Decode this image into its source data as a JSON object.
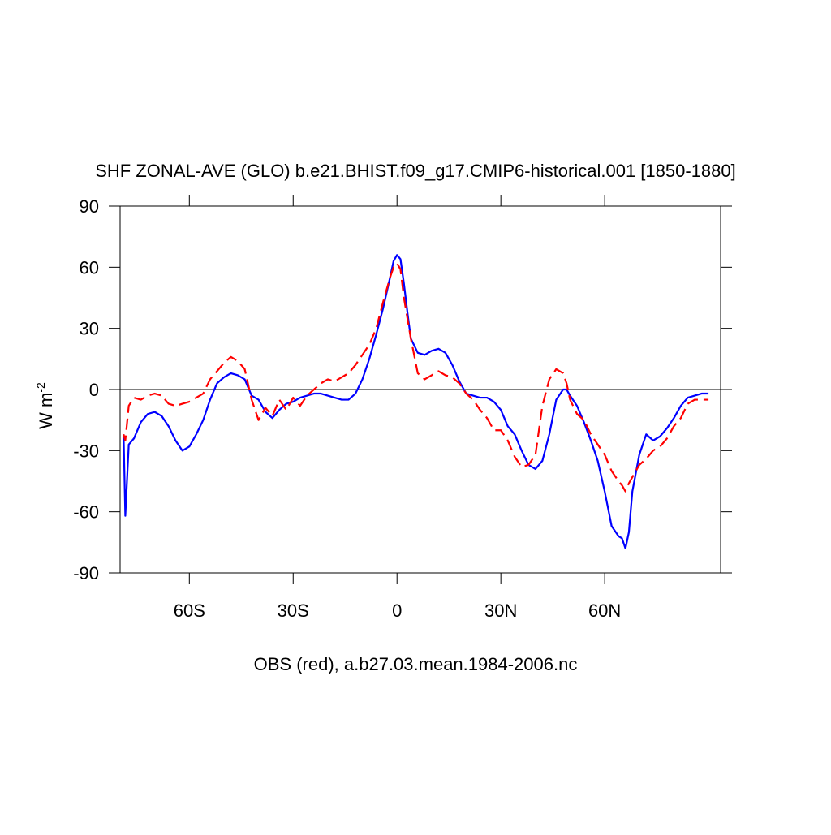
{
  "chart_data": {
    "type": "line",
    "title": "SHF ZONAL-AVE (GLO) b.e21.BHIST.f09_g17.CMIP6-historical.001 [1850-1880]",
    "x_label": "OBS (red), a.b27.03.mean.1984-2006.nc",
    "y_label": "W m",
    "y_label_superscript": "-2",
    "x": [
      -79,
      -78.5,
      -77.5,
      -76,
      -74,
      -72,
      -70,
      -68,
      -66,
      -64,
      -62,
      -60,
      -58,
      -56,
      -54,
      -52,
      -50,
      -48,
      -46,
      -44,
      -42,
      -40,
      -38,
      -36,
      -34,
      -32,
      -30,
      -28,
      -26,
      -24,
      -22,
      -20,
      -18,
      -16,
      -14,
      -12,
      -10,
      -8,
      -6,
      -4,
      -2,
      -1,
      0,
      1,
      2,
      3,
      4,
      6,
      8,
      10,
      12,
      14,
      16,
      18,
      20,
      22,
      24,
      26,
      28,
      30,
      32,
      34,
      36,
      38,
      40,
      42,
      44,
      46,
      48,
      49,
      50,
      52,
      54,
      56,
      58,
      60,
      62,
      64,
      65,
      66,
      67,
      68,
      70,
      72,
      74,
      76,
      78,
      80,
      82,
      84,
      86,
      88,
      90
    ],
    "series": [
      {
        "color": "#0000ff",
        "dash": false,
        "values": [
          -22,
          -62,
          -27,
          -24,
          -16,
          -12,
          -11,
          -13,
          -18,
          -25,
          -30,
          -28,
          -22,
          -15,
          -5,
          3,
          6,
          8,
          7,
          5,
          -3,
          -5,
          -11,
          -14,
          -10,
          -7,
          -6,
          -4,
          -3,
          -2,
          -2,
          -3,
          -4,
          -5,
          -5,
          -2,
          5,
          15,
          27,
          40,
          55,
          63,
          66,
          64,
          52,
          38,
          25,
          18,
          17,
          19,
          20,
          18,
          12,
          4,
          -2,
          -3,
          -4,
          -4,
          -6,
          -10,
          -18,
          -22,
          -30,
          -37,
          -39,
          -35,
          -22,
          -5,
          0,
          0,
          -3,
          -8,
          -16,
          -25,
          -35,
          -50,
          -67,
          -72,
          -73,
          -78,
          -70,
          -50,
          -32,
          -22,
          -25,
          -23,
          -19,
          -14,
          -8,
          -4,
          -3,
          -2,
          -2
        ]
      },
      {
        "color": "#ff0000",
        "dash": true,
        "values": [
          -22,
          -25,
          -8,
          -4,
          -5,
          -3,
          -2,
          -3,
          -7,
          -8,
          -7,
          -6,
          -4,
          -2,
          5,
          9,
          13,
          16,
          14,
          10,
          -5,
          -15,
          -9,
          -13,
          -5,
          -10,
          -4,
          -8,
          -3,
          0,
          3,
          5,
          4,
          6,
          8,
          12,
          17,
          22,
          30,
          43,
          55,
          60,
          62,
          59,
          45,
          35,
          25,
          8,
          5,
          7,
          9,
          7,
          6,
          3,
          -2,
          -5,
          -10,
          -14,
          -20,
          -20,
          -25,
          -33,
          -38,
          -37,
          -32,
          -8,
          5,
          10,
          8,
          3,
          -5,
          -12,
          -15,
          -22,
          -27,
          -32,
          -40,
          -45,
          -47,
          -50,
          -46,
          -43,
          -37,
          -34,
          -30,
          -28,
          -24,
          -18,
          -14,
          -7,
          -5,
          -5,
          -5
        ]
      }
    ],
    "xlim": [
      -80,
      93.5
    ],
    "ylim": [
      -90,
      90
    ],
    "xticks": [
      {
        "value": -60,
        "label": "60S"
      },
      {
        "value": -30,
        "label": "30S"
      },
      0,
      {
        "value": 30,
        "label": "30N"
      },
      {
        "value": 60,
        "label": "60N"
      }
    ],
    "yticks": [
      -90,
      -60,
      -30,
      0,
      30,
      60,
      90
    ],
    "reference_line": 0
  }
}
